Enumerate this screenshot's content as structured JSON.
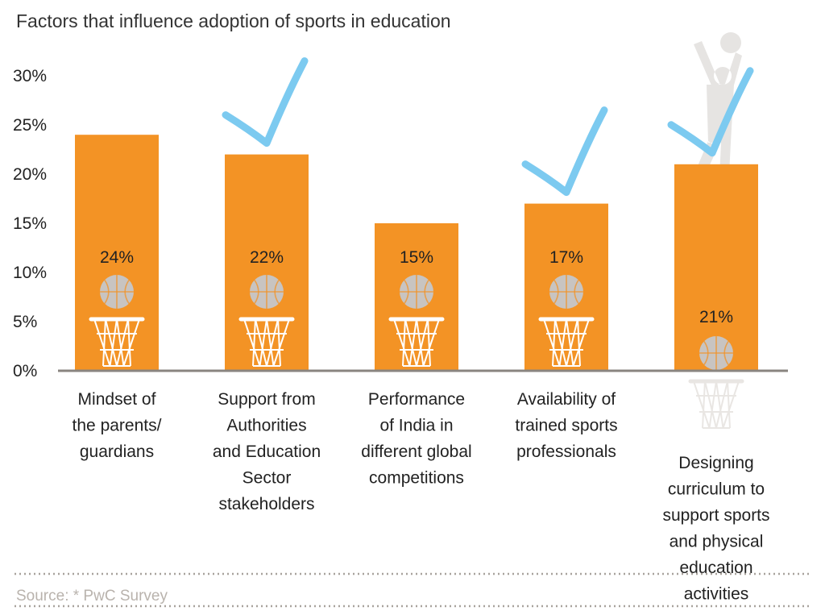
{
  "chart_data": {
    "type": "bar",
    "title": "Factors that influence adoption of sports in education",
    "categories": [
      [
        "Mindset of",
        "the parents/",
        "guardians"
      ],
      [
        "Support from",
        "Authorities",
        "and Education",
        "Sector",
        "stakeholders"
      ],
      [
        "Performance",
        "of India in",
        "different global",
        "competitions"
      ],
      [
        "Availability of",
        "trained sports",
        "professionals"
      ],
      [
        "Designing",
        "curriculum to",
        "support sports",
        "and physical",
        "education",
        "activities"
      ]
    ],
    "values": [
      24,
      22,
      15,
      17,
      21
    ],
    "value_labels": [
      "24%",
      "22%",
      "15%",
      "17%",
      "21%"
    ],
    "checked": [
      false,
      true,
      false,
      true,
      true
    ],
    "yticks": [
      "0%",
      "5%",
      "10%",
      "15%",
      "20%",
      "25%",
      "30%"
    ],
    "ylim": [
      0,
      30
    ],
    "grid": false,
    "legend": "none",
    "bar_color": "#f39325",
    "check_color": "#7ccaf0",
    "ball_color": "#c8c4c1",
    "source": "Source: * PwC Survey"
  }
}
